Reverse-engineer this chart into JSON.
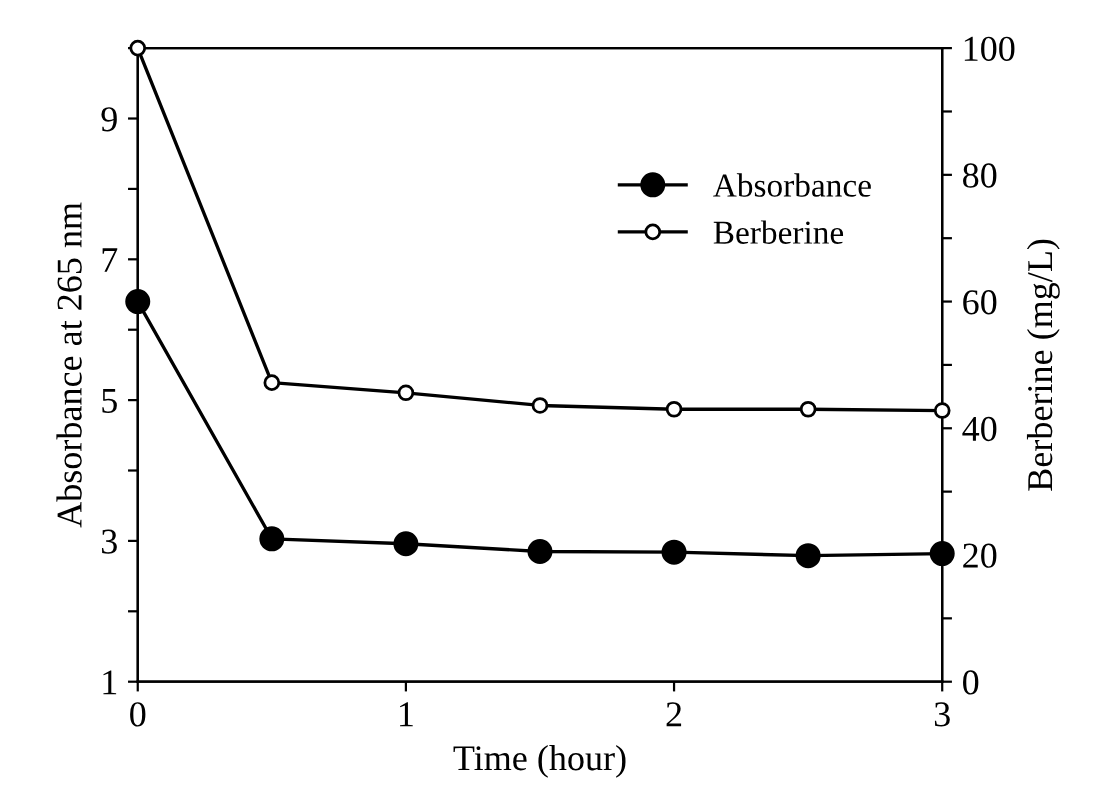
{
  "chart_data": {
    "type": "line",
    "xlabel": "Time (hour)",
    "ylabel": "Absorbance at 265 nm",
    "y2label": "Berberine (mg/L)",
    "x": [
      0,
      0.5,
      1,
      1.5,
      2,
      2.5,
      3
    ],
    "series": [
      {
        "name": "Absorbance",
        "color": "#000000",
        "marker": "circle",
        "values": [
          6.4,
          3.03,
          2.96,
          2.85,
          2.84,
          2.79,
          2.82
        ]
      },
      {
        "name": "Berberine",
        "color": "#000000",
        "marker": "circle",
        "axis": "y2",
        "values": [
          100,
          47.2,
          45.6,
          43.6,
          43.0,
          43.0,
          42.8
        ]
      }
    ],
    "xlim": [
      0,
      3
    ],
    "xticks": [
      0,
      1,
      2,
      3
    ],
    "ylim": [
      1,
      10
    ],
    "yticks": [
      1,
      {
        "value": 2,
        "label": null
      },
      3,
      {
        "value": 4,
        "label": null
      },
      5,
      {
        "value": 6,
        "label": null
      },
      7,
      {
        "value": 8,
        "label": null
      },
      9,
      {
        "value": 10,
        "label": null
      }
    ],
    "y2lim": [
      0,
      100
    ],
    "y2ticks": [
      0,
      {
        "value": 10,
        "label": null
      },
      20,
      {
        "value": 30,
        "label": null
      },
      40,
      {
        "value": 50,
        "label": null
      },
      60,
      {
        "value": 70,
        "label": null
      },
      80,
      {
        "value": 90,
        "label": null
      },
      100
    ],
    "legend": "top right",
    "grid": false,
    "line_style": "solid"
  }
}
